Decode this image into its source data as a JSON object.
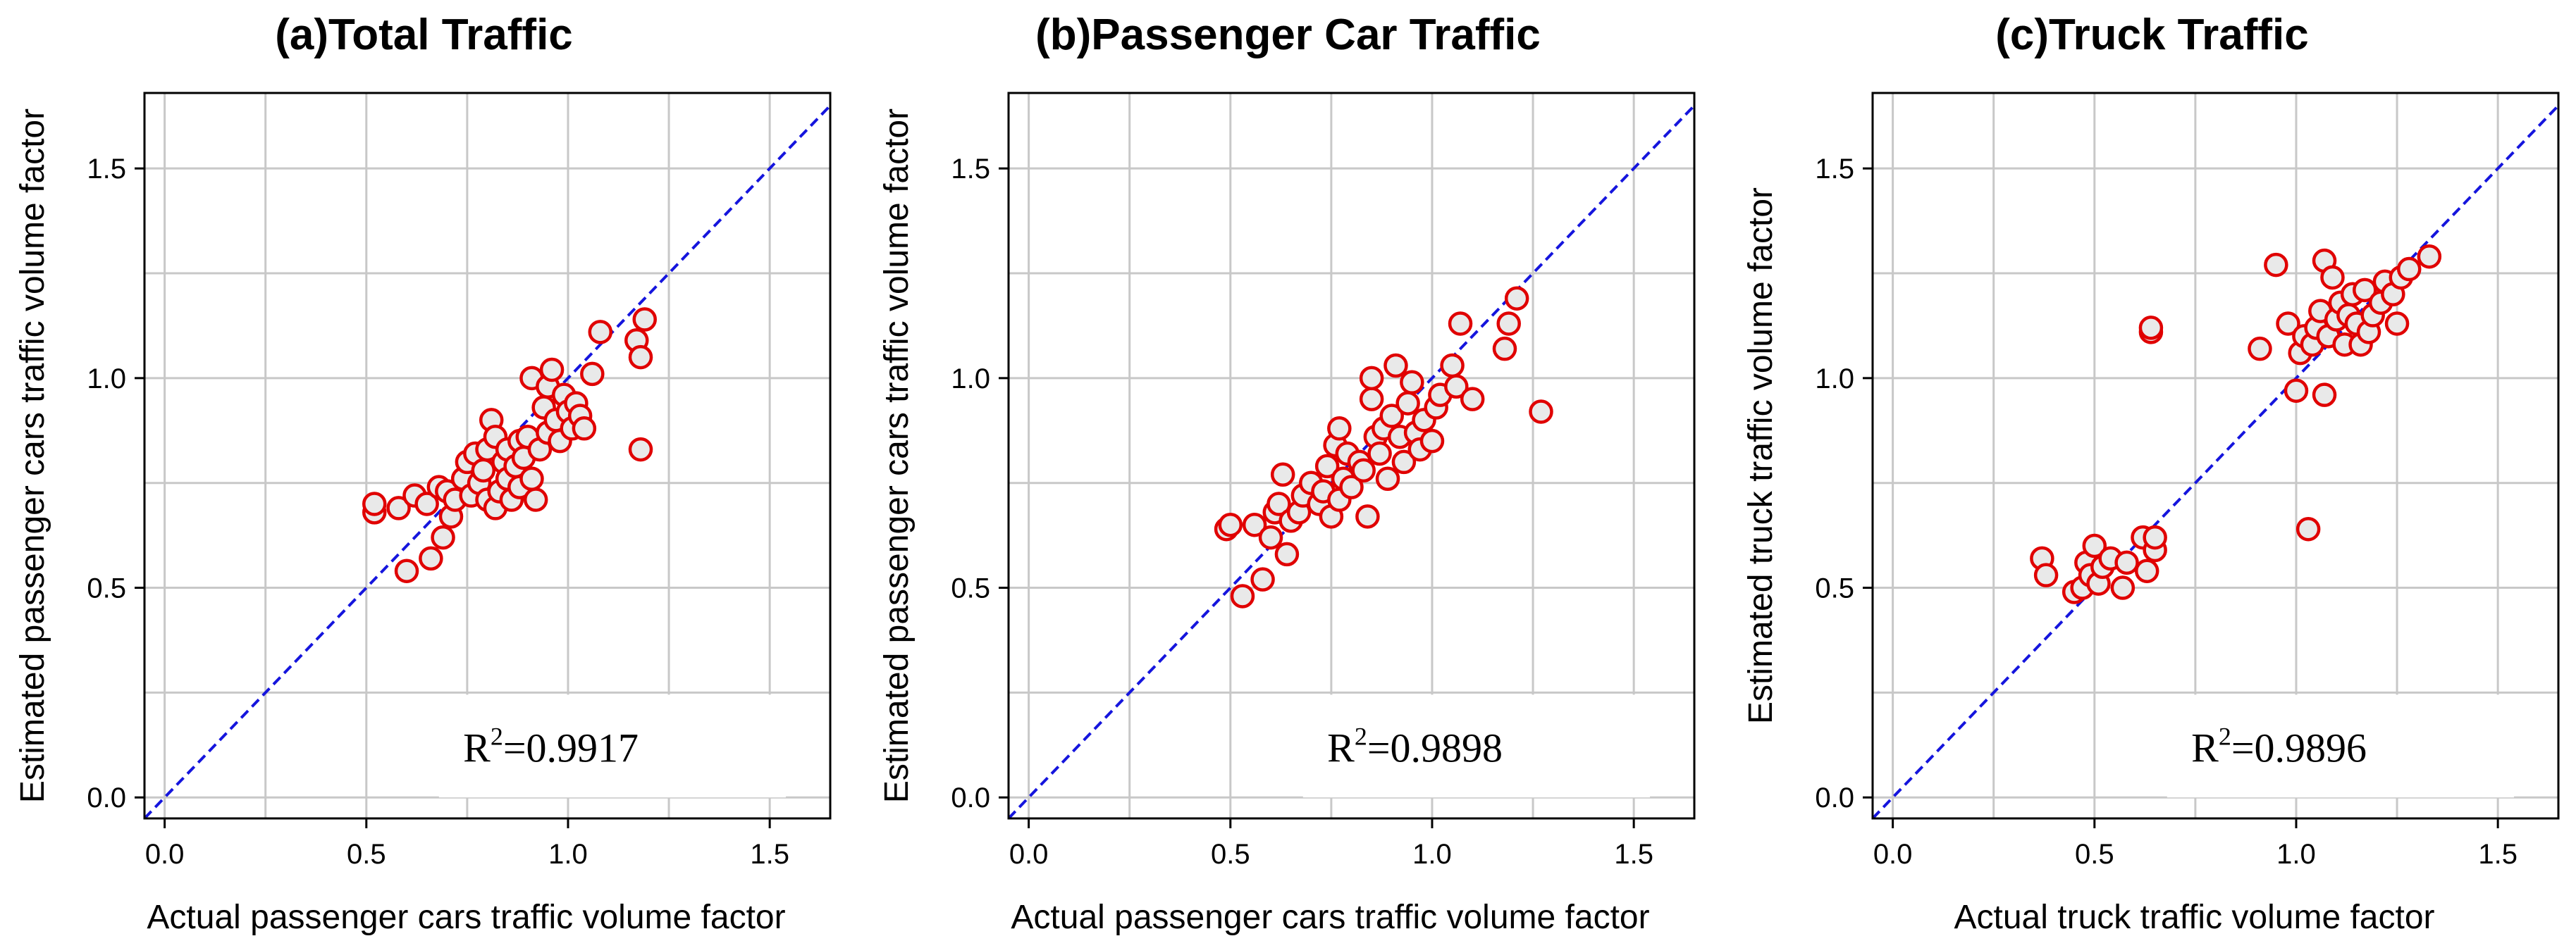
{
  "chart_data": [
    {
      "type": "scatter",
      "title": "(a)Total Traffic",
      "xlabel": "Actual passenger cars traffic volume factor",
      "ylabel": "Estimated passenger cars traffic volume factor",
      "xlim": [
        -0.05,
        1.65
      ],
      "ylim": [
        -0.05,
        1.68
      ],
      "xticks": [
        0.0,
        0.5,
        1.0,
        1.5
      ],
      "yticks": [
        0.0,
        0.5,
        1.0,
        1.5
      ],
      "tick_labels_x": [
        "0.0",
        "0.5",
        "1.0",
        "1.5"
      ],
      "tick_labels_y": [
        "0.0",
        "0.5",
        "1.0",
        "1.5"
      ],
      "grid": true,
      "reference_line": "y = x",
      "annotation": {
        "prefix": "R",
        "sup": "2",
        "value": "=0.9917"
      },
      "marker_color": "#e00000",
      "line_color": "#1515dd",
      "points": [
        [
          0.52,
          0.68
        ],
        [
          0.52,
          0.7
        ],
        [
          0.58,
          0.69
        ],
        [
          0.6,
          0.54
        ],
        [
          0.62,
          0.72
        ],
        [
          0.65,
          0.7
        ],
        [
          0.66,
          0.57
        ],
        [
          0.68,
          0.74
        ],
        [
          0.69,
          0.62
        ],
        [
          0.7,
          0.73
        ],
        [
          0.71,
          0.67
        ],
        [
          0.72,
          0.71
        ],
        [
          0.74,
          0.76
        ],
        [
          0.75,
          0.8
        ],
        [
          0.76,
          0.72
        ],
        [
          0.77,
          0.82
        ],
        [
          0.78,
          0.75
        ],
        [
          0.79,
          0.78
        ],
        [
          0.8,
          0.71
        ],
        [
          0.8,
          0.83
        ],
        [
          0.81,
          0.9
        ],
        [
          0.82,
          0.69
        ],
        [
          0.82,
          0.86
        ],
        [
          0.83,
          0.73
        ],
        [
          0.84,
          0.8
        ],
        [
          0.85,
          0.76
        ],
        [
          0.85,
          0.83
        ],
        [
          0.86,
          0.71
        ],
        [
          0.87,
          0.79
        ],
        [
          0.88,
          0.74
        ],
        [
          0.88,
          0.85
        ],
        [
          0.89,
          0.81
        ],
        [
          0.9,
          0.86
        ],
        [
          0.91,
          0.76
        ],
        [
          0.91,
          1.0
        ],
        [
          0.92,
          0.71
        ],
        [
          0.93,
          0.83
        ],
        [
          0.94,
          0.93
        ],
        [
          0.95,
          0.87
        ],
        [
          0.95,
          0.98
        ],
        [
          0.96,
          1.02
        ],
        [
          0.97,
          0.9
        ],
        [
          0.98,
          0.85
        ],
        [
          0.99,
          0.96
        ],
        [
          1.0,
          0.92
        ],
        [
          1.01,
          0.88
        ],
        [
          1.02,
          0.94
        ],
        [
          1.03,
          0.91
        ],
        [
          1.04,
          0.88
        ],
        [
          1.06,
          1.01
        ],
        [
          1.08,
          1.11
        ],
        [
          1.17,
          1.09
        ],
        [
          1.18,
          0.83
        ],
        [
          1.18,
          1.05
        ],
        [
          1.19,
          1.14
        ]
      ]
    },
    {
      "type": "scatter",
      "title": "(b)Passenger Car Traffic",
      "xlabel": "Actual passenger cars traffic volume factor",
      "ylabel": "Estimated passenger cars traffic volume factor",
      "xlim": [
        -0.05,
        1.65
      ],
      "ylim": [
        -0.05,
        1.68
      ],
      "xticks": [
        0.0,
        0.5,
        1.0,
        1.5
      ],
      "yticks": [
        0.0,
        0.5,
        1.0,
        1.5
      ],
      "tick_labels_x": [
        "0.0",
        "0.5",
        "1.0",
        "1.5"
      ],
      "tick_labels_y": [
        "0.0",
        "0.5",
        "1.0",
        "1.5"
      ],
      "grid": true,
      "reference_line": "y = x",
      "annotation": {
        "prefix": "R",
        "sup": "2",
        "value": "=0.9898"
      },
      "marker_color": "#e00000",
      "line_color": "#1515dd",
      "points": [
        [
          0.49,
          0.64
        ],
        [
          0.5,
          0.65
        ],
        [
          0.53,
          0.48
        ],
        [
          0.56,
          0.65
        ],
        [
          0.58,
          0.52
        ],
        [
          0.6,
          0.62
        ],
        [
          0.61,
          0.68
        ],
        [
          0.62,
          0.7
        ],
        [
          0.63,
          0.77
        ],
        [
          0.64,
          0.58
        ],
        [
          0.65,
          0.66
        ],
        [
          0.67,
          0.68
        ],
        [
          0.68,
          0.72
        ],
        [
          0.7,
          0.75
        ],
        [
          0.72,
          0.7
        ],
        [
          0.73,
          0.73
        ],
        [
          0.74,
          0.79
        ],
        [
          0.75,
          0.67
        ],
        [
          0.76,
          0.84
        ],
        [
          0.77,
          0.88
        ],
        [
          0.77,
          0.71
        ],
        [
          0.78,
          0.76
        ],
        [
          0.79,
          0.82
        ],
        [
          0.8,
          0.74
        ],
        [
          0.82,
          0.8
        ],
        [
          0.83,
          0.78
        ],
        [
          0.84,
          0.67
        ],
        [
          0.85,
          0.95
        ],
        [
          0.85,
          1.0
        ],
        [
          0.86,
          0.86
        ],
        [
          0.87,
          0.82
        ],
        [
          0.88,
          0.88
        ],
        [
          0.89,
          0.76
        ],
        [
          0.9,
          0.91
        ],
        [
          0.91,
          1.03
        ],
        [
          0.92,
          0.86
        ],
        [
          0.93,
          0.8
        ],
        [
          0.94,
          0.94
        ],
        [
          0.95,
          0.99
        ],
        [
          0.96,
          0.87
        ],
        [
          0.97,
          0.83
        ],
        [
          0.98,
          0.9
        ],
        [
          1.0,
          0.85
        ],
        [
          1.01,
          0.93
        ],
        [
          1.02,
          0.96
        ],
        [
          1.05,
          1.03
        ],
        [
          1.06,
          0.98
        ],
        [
          1.07,
          1.13
        ],
        [
          1.1,
          0.95
        ],
        [
          1.18,
          1.07
        ],
        [
          1.19,
          1.13
        ],
        [
          1.21,
          1.19
        ],
        [
          1.27,
          0.92
        ]
      ]
    },
    {
      "type": "scatter",
      "title": "(c)Truck Traffic",
      "xlabel": "Actual truck traffic volume factor",
      "ylabel": "Estimated truck traffic volume factor",
      "xlim": [
        -0.05,
        1.65
      ],
      "ylim": [
        -0.05,
        1.68
      ],
      "xticks": [
        0.0,
        0.5,
        1.0,
        1.5
      ],
      "yticks": [
        0.0,
        0.5,
        1.0,
        1.5
      ],
      "tick_labels_x": [
        "0.0",
        "0.5",
        "1.0",
        "1.5"
      ],
      "tick_labels_y": [
        "0.0",
        "0.5",
        "1.0",
        "1.5"
      ],
      "grid": true,
      "reference_line": "y = x",
      "annotation": {
        "prefix": "R",
        "sup": "2",
        "value": "=0.9896"
      },
      "marker_color": "#e00000",
      "line_color": "#1515dd",
      "points": [
        [
          0.37,
          0.57
        ],
        [
          0.38,
          0.53
        ],
        [
          0.45,
          0.49
        ],
        [
          0.47,
          0.5
        ],
        [
          0.48,
          0.56
        ],
        [
          0.49,
          0.53
        ],
        [
          0.5,
          0.6
        ],
        [
          0.51,
          0.51
        ],
        [
          0.52,
          0.55
        ],
        [
          0.54,
          0.57
        ],
        [
          0.57,
          0.5
        ],
        [
          0.58,
          0.56
        ],
        [
          0.62,
          0.62
        ],
        [
          0.63,
          0.54
        ],
        [
          0.64,
          1.11
        ],
        [
          0.64,
          1.12
        ],
        [
          0.65,
          0.59
        ],
        [
          0.65,
          0.62
        ],
        [
          0.91,
          1.07
        ],
        [
          0.95,
          1.27
        ],
        [
          0.98,
          1.13
        ],
        [
          1.0,
          0.97
        ],
        [
          1.01,
          1.06
        ],
        [
          1.02,
          1.1
        ],
        [
          1.03,
          0.64
        ],
        [
          1.04,
          1.08
        ],
        [
          1.05,
          1.12
        ],
        [
          1.06,
          1.16
        ],
        [
          1.07,
          0.96
        ],
        [
          1.07,
          1.28
        ],
        [
          1.08,
          1.1
        ],
        [
          1.09,
          1.24
        ],
        [
          1.1,
          1.14
        ],
        [
          1.11,
          1.18
        ],
        [
          1.12,
          1.08
        ],
        [
          1.13,
          1.15
        ],
        [
          1.14,
          1.2
        ],
        [
          1.15,
          1.13
        ],
        [
          1.16,
          1.08
        ],
        [
          1.17,
          1.21
        ],
        [
          1.18,
          1.11
        ],
        [
          1.19,
          1.15
        ],
        [
          1.21,
          1.18
        ],
        [
          1.22,
          1.23
        ],
        [
          1.24,
          1.2
        ],
        [
          1.25,
          1.13
        ],
        [
          1.26,
          1.24
        ],
        [
          1.28,
          1.26
        ],
        [
          1.33,
          1.29
        ]
      ]
    }
  ]
}
